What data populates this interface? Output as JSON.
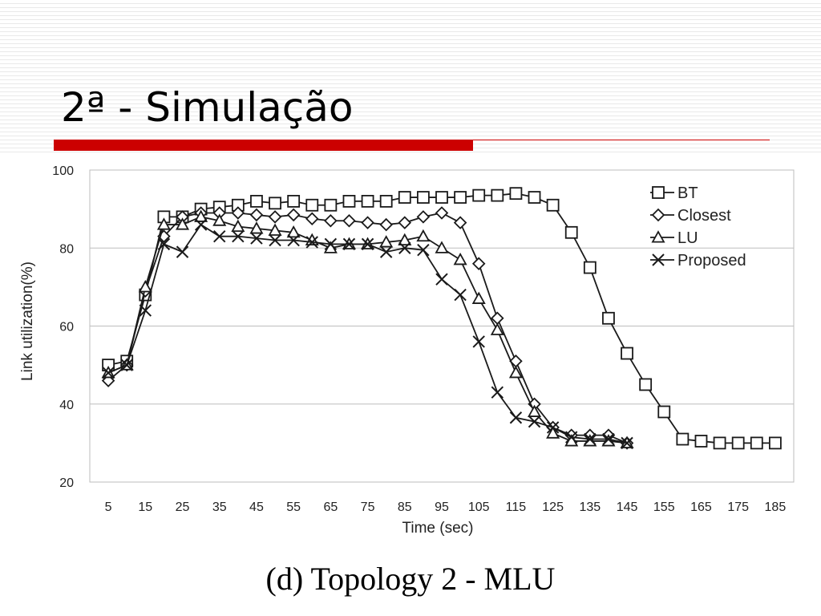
{
  "slide": {
    "title": "2ª - Simulação",
    "accent_color": "#cc0000"
  },
  "caption": "(d) Topology 2 - MLU",
  "chart_data": {
    "type": "line",
    "title": "",
    "xlabel": "Time (sec)",
    "ylabel": "Link utilization(%)",
    "xlim": [
      5,
      185
    ],
    "ylim": [
      20,
      100
    ],
    "xticks": [
      5,
      15,
      25,
      35,
      45,
      55,
      65,
      75,
      85,
      95,
      105,
      115,
      125,
      135,
      145,
      155,
      165,
      175,
      185
    ],
    "yticks": [
      20,
      40,
      60,
      80,
      100
    ],
    "grid": "horizontal",
    "legend_position": "top-right",
    "series": [
      {
        "name": "BT",
        "marker": "square",
        "x": [
          5,
          10,
          15,
          20,
          25,
          30,
          35,
          40,
          45,
          50,
          55,
          60,
          65,
          70,
          75,
          80,
          85,
          90,
          95,
          100,
          105,
          110,
          115,
          120,
          125,
          130,
          135,
          140,
          145,
          150,
          155,
          160,
          165,
          170,
          175,
          180,
          185
        ],
        "y": [
          50,
          51,
          68,
          88,
          88,
          90,
          90.5,
          91,
          92,
          91.5,
          92,
          91,
          91,
          92,
          92,
          92,
          93,
          93,
          93,
          93,
          93.5,
          93.5,
          94,
          93,
          91,
          84,
          75,
          62,
          53,
          45,
          38,
          31,
          30.5,
          30,
          30,
          30,
          30
        ]
      },
      {
        "name": "Closest",
        "marker": "diamond",
        "x": [
          5,
          10,
          15,
          20,
          25,
          30,
          35,
          40,
          45,
          50,
          55,
          60,
          65,
          70,
          75,
          80,
          85,
          90,
          95,
          100,
          105,
          110,
          115,
          120,
          125,
          130,
          135,
          140,
          145
        ],
        "y": [
          46,
          50,
          69,
          83,
          88,
          89,
          89,
          89,
          88.5,
          88,
          88.5,
          87.5,
          87,
          87,
          86.5,
          86,
          86.5,
          88,
          89,
          86.5,
          76,
          62,
          51,
          40,
          34,
          32,
          32,
          32,
          30
        ]
      },
      {
        "name": "LU",
        "marker": "triangle",
        "x": [
          5,
          10,
          15,
          20,
          25,
          30,
          35,
          40,
          45,
          50,
          55,
          60,
          65,
          70,
          75,
          80,
          85,
          90,
          95,
          100,
          105,
          110,
          115,
          120,
          125,
          130,
          135,
          140,
          145
        ],
        "y": [
          48,
          50,
          70,
          86,
          86,
          88,
          87,
          85.5,
          85,
          84.5,
          84,
          82,
          80,
          81,
          81,
          81.5,
          82,
          83,
          80,
          77,
          67,
          59,
          48,
          38,
          32.5,
          30.5,
          30.5,
          30.5,
          30
        ]
      },
      {
        "name": "Proposed",
        "marker": "x",
        "x": [
          5,
          10,
          15,
          20,
          25,
          30,
          35,
          40,
          45,
          50,
          55,
          60,
          65,
          70,
          75,
          80,
          85,
          90,
          95,
          100,
          105,
          110,
          115,
          120,
          125,
          130,
          135,
          140,
          145
        ],
        "y": [
          48,
          50,
          64,
          81,
          79,
          86,
          83,
          83,
          82.5,
          82,
          82,
          81.5,
          81,
          81,
          81,
          79,
          80,
          79.5,
          72,
          68,
          56,
          43,
          36.5,
          35.5,
          34,
          31.5,
          31,
          31,
          30
        ]
      }
    ]
  }
}
